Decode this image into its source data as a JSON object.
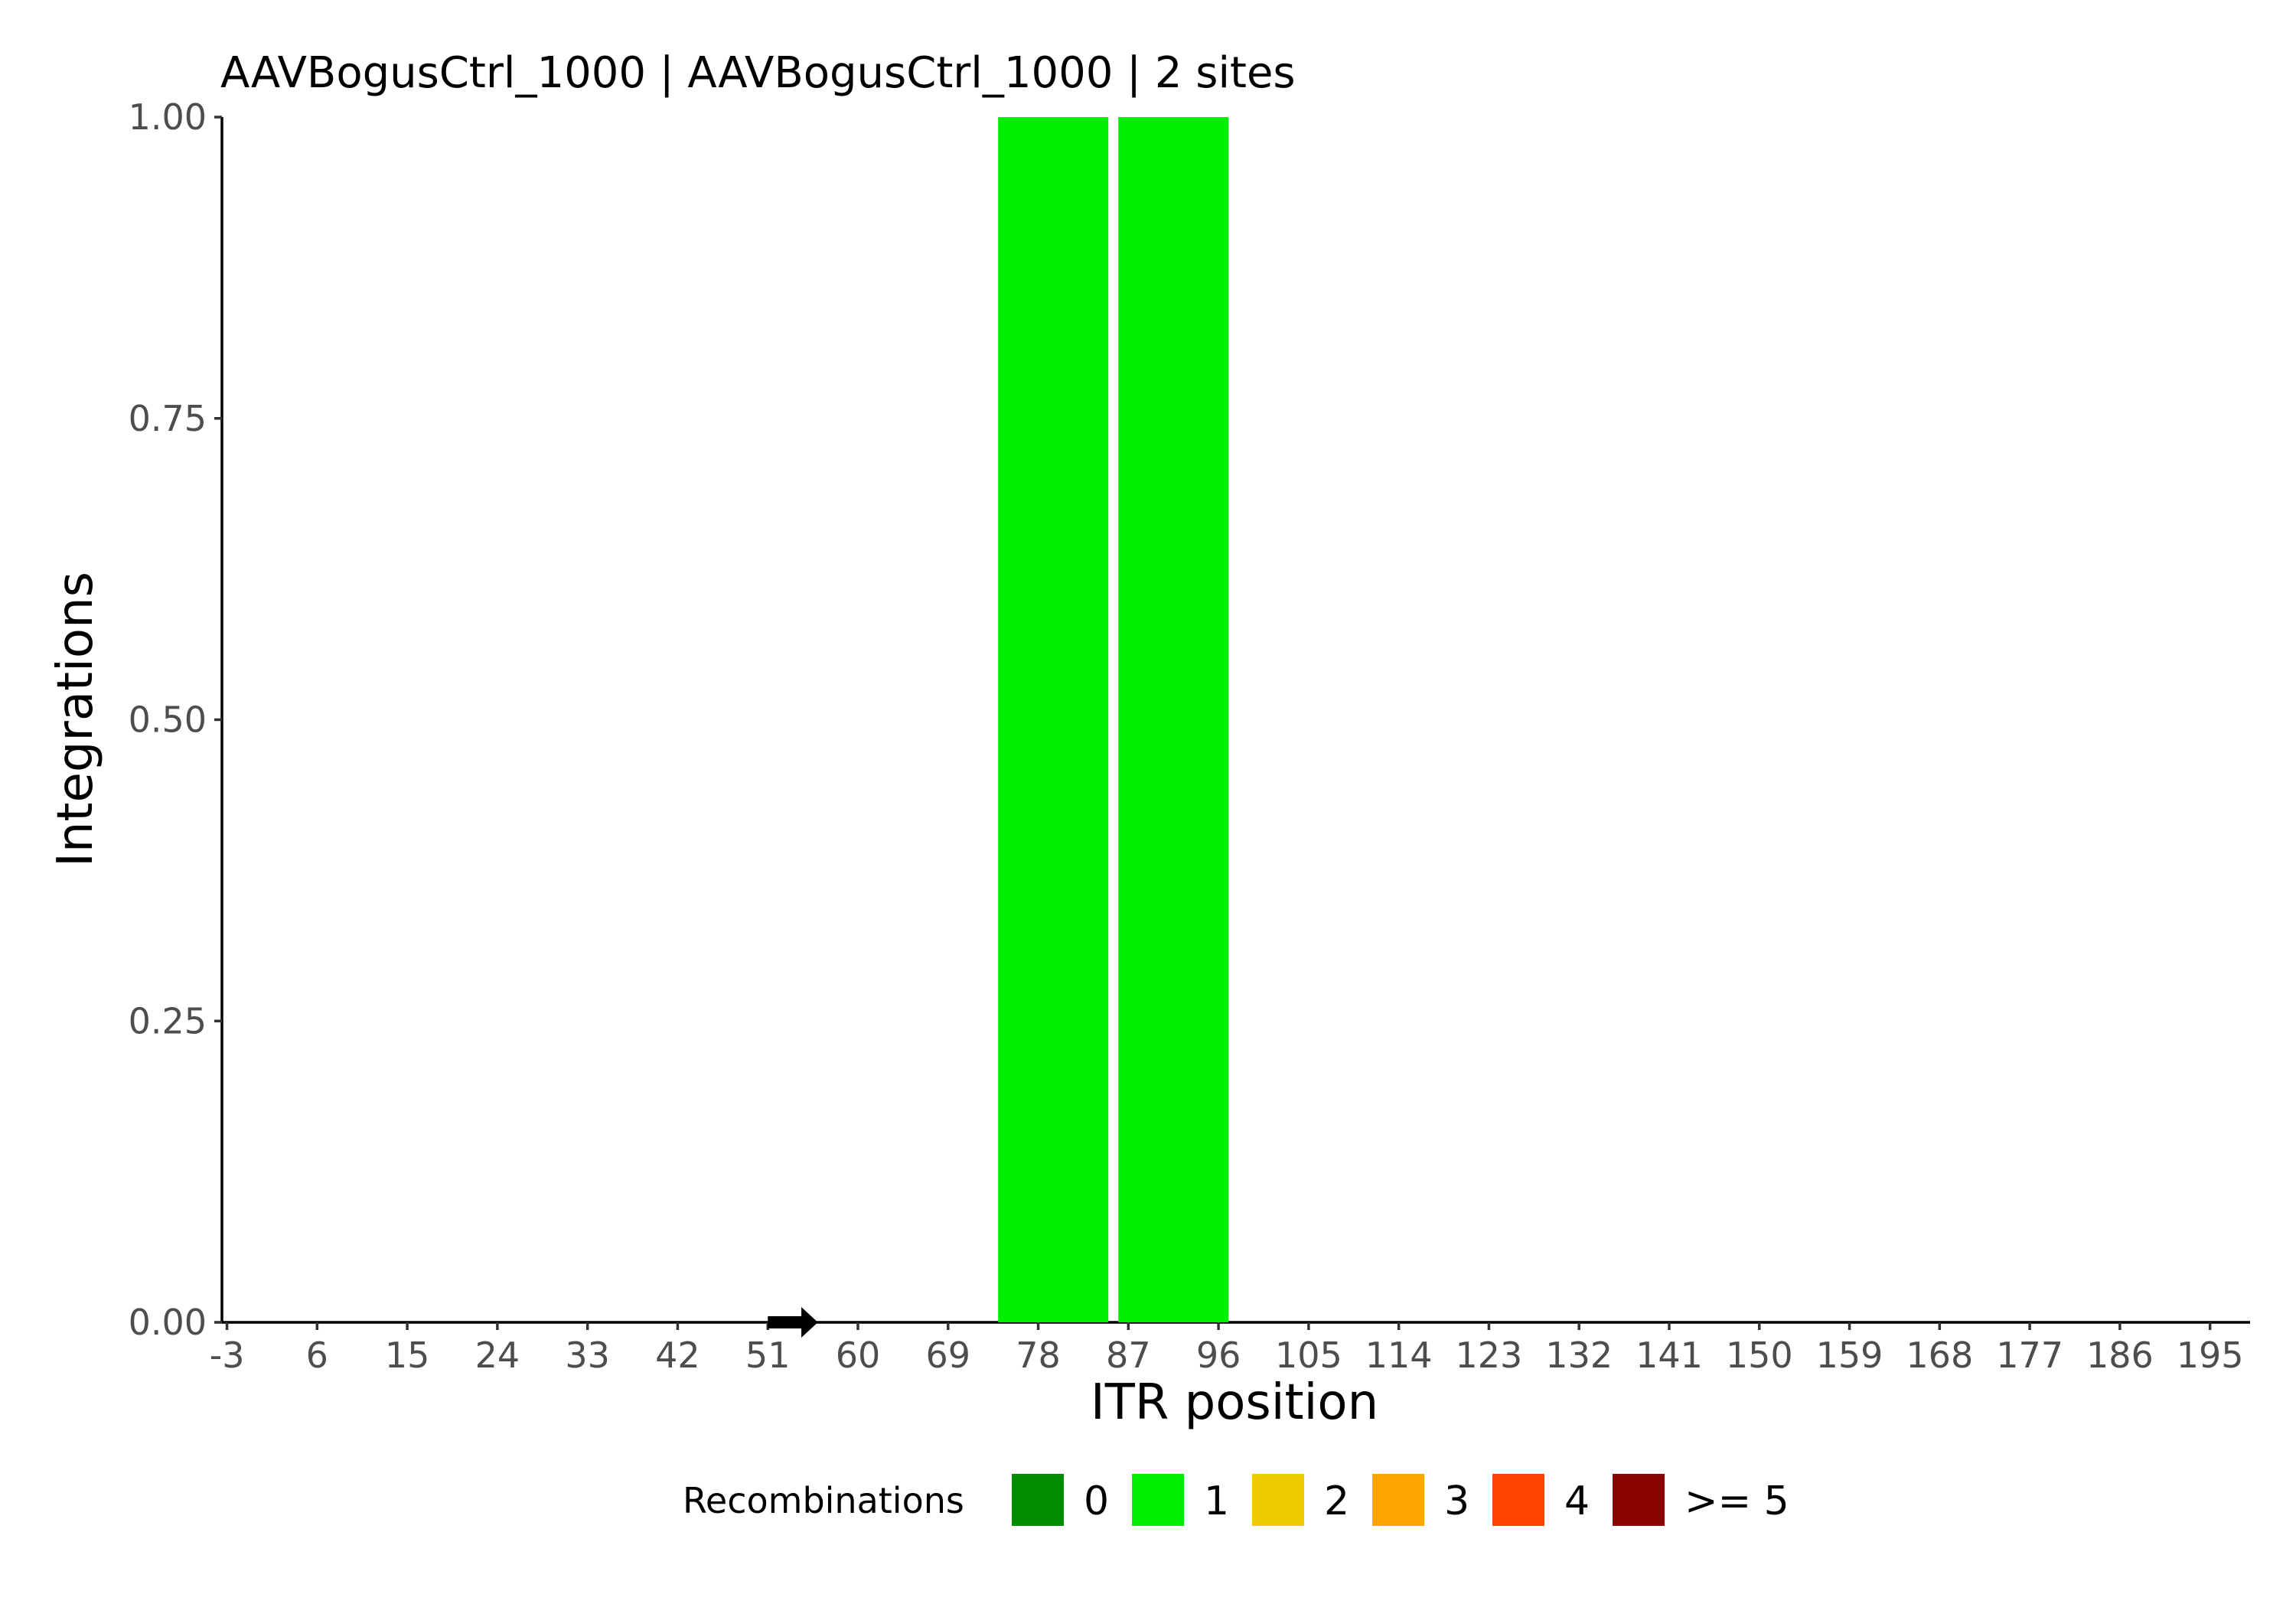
{
  "chart_data": {
    "type": "bar",
    "title": "AAVBogusCtrl_1000 | AAVBogusCtrl_1000 | 2 sites",
    "xlabel": "ITR position",
    "ylabel": "Integrations",
    "xlim": [
      -3.5,
      199
    ],
    "ylim": [
      0,
      1
    ],
    "x_ticks": [
      -3,
      6,
      15,
      24,
      33,
      42,
      51,
      60,
      69,
      78,
      87,
      96,
      105,
      114,
      123,
      132,
      141,
      150,
      159,
      168,
      177,
      186,
      195
    ],
    "y_ticks": [
      "0.00",
      "0.25",
      "0.50",
      "0.75",
      "1.00"
    ],
    "bars": [
      {
        "x_start": 74,
        "x_end": 85,
        "value": 1,
        "recombinations": "1"
      },
      {
        "x_start": 86,
        "x_end": 97,
        "value": 1,
        "recombinations": "1"
      }
    ],
    "arrow_marker": {
      "x_start": 51,
      "x_end": 56
    },
    "legend": {
      "title": "Recombinations",
      "position": "bottom",
      "items": [
        {
          "label": "0",
          "color": "#008b00"
        },
        {
          "label": "1",
          "color": "#00ee00"
        },
        {
          "label": "2",
          "color": "#eec900"
        },
        {
          "label": "3",
          "color": "#ffa500"
        },
        {
          "label": "4",
          "color": "#ff4500"
        },
        {
          "label": ">= 5",
          "color": "#8b0000"
        }
      ]
    },
    "grid": false
  }
}
